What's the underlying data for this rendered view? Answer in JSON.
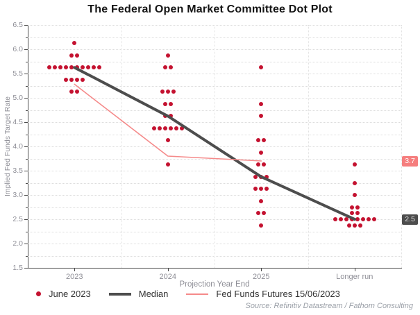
{
  "title": "The Federal Open Market Committee Dot Plot",
  "source": "Source: Refinitiv Datastream / Fathom Consulting",
  "colors": {
    "dot_red": "#c41230",
    "median_gray": "#4d4d4d",
    "futures_pink": "#f58a8a",
    "futures_label_bg": "#f57e7e",
    "median_label_bg": "#4d4d4d"
  },
  "legend": [
    {
      "label": "June 2023",
      "marker": "dot",
      "color": "#c41230"
    },
    {
      "label": "Median",
      "marker": "thick-line",
      "color": "#4d4d4d"
    },
    {
      "label": "Fed Funds Futures 15/06/2023",
      "marker": "thin-line",
      "color": "#f58a8a"
    }
  ],
  "chart_data": {
    "type": "scatter",
    "title": "The Federal Open Market Committee Dot Plot",
    "xlabel": "Projection Year End",
    "ylabel": "Implied Fed Funds Target Rate",
    "ylim": [
      1.5,
      6.5
    ],
    "y_major_step": 0.5,
    "grid_step": 0.25,
    "grid": "horizontal dotted every 0.25, vertical dotted at category boundaries",
    "legend_position": "bottom",
    "categories": [
      "2023",
      "2024",
      "2025",
      "Longer run"
    ],
    "dots": [
      {
        "category": "2023",
        "stacks": [
          [
            6.125,
            1
          ],
          [
            5.875,
            2
          ],
          [
            5.625,
            10
          ],
          [
            5.375,
            4
          ],
          [
            5.125,
            2
          ]
        ]
      },
      {
        "category": "2024",
        "stacks": [
          [
            5.875,
            1
          ],
          [
            5.625,
            2
          ],
          [
            5.125,
            3
          ],
          [
            4.875,
            2
          ],
          [
            4.625,
            2
          ],
          [
            4.375,
            6
          ],
          [
            4.125,
            1
          ],
          [
            3.625,
            1
          ]
        ]
      },
      {
        "category": "2025",
        "stacks": [
          [
            5.625,
            1
          ],
          [
            4.875,
            1
          ],
          [
            4.625,
            1
          ],
          [
            4.125,
            2
          ],
          [
            3.875,
            1
          ],
          [
            3.625,
            2
          ],
          [
            3.375,
            3
          ],
          [
            3.125,
            3
          ],
          [
            2.875,
            1
          ],
          [
            2.625,
            2
          ],
          [
            2.375,
            1
          ]
        ]
      },
      {
        "category": "Longer run",
        "stacks": [
          [
            3.625,
            1
          ],
          [
            3.25,
            1
          ],
          [
            3.0,
            1
          ],
          [
            2.75,
            2
          ],
          [
            2.625,
            2
          ],
          [
            2.5,
            8
          ],
          [
            2.375,
            3
          ]
        ]
      }
    ],
    "series": [
      {
        "name": "Median",
        "x": [
          0,
          1,
          2,
          3
        ],
        "values": [
          5.625,
          4.625,
          3.375,
          2.5
        ],
        "color": "#4d4d4d",
        "width": 4
      },
      {
        "name": "Fed Funds Futures 15/06/2023",
        "x": [
          0,
          1,
          2
        ],
        "values": [
          5.28,
          3.8,
          3.7
        ],
        "color": "#f58a8a",
        "width": 1.6
      }
    ],
    "end_labels": [
      {
        "text": "3.7",
        "value": 3.7,
        "bg": "#f57e7e",
        "fg": "#ffffff"
      },
      {
        "text": "2.5",
        "value": 2.5,
        "bg": "#4d4d4d",
        "fg": "#dcdcdc"
      }
    ]
  }
}
